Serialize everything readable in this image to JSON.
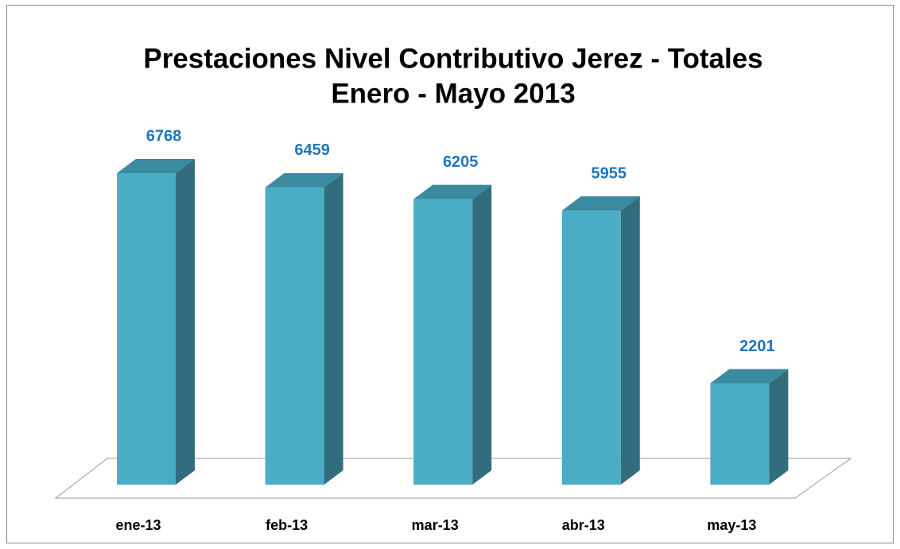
{
  "chart_data": {
    "type": "bar3d",
    "title": "Prestaciones Nivel Contributivo Jerez - Totales",
    "subtitle": "Enero - Mayo 2013",
    "categories": [
      "ene-13",
      "feb-13",
      "mar-13",
      "abr-13",
      "may-13"
    ],
    "values": [
      6768,
      6459,
      6205,
      5955,
      2201
    ],
    "color": "#4bacc6"
  }
}
